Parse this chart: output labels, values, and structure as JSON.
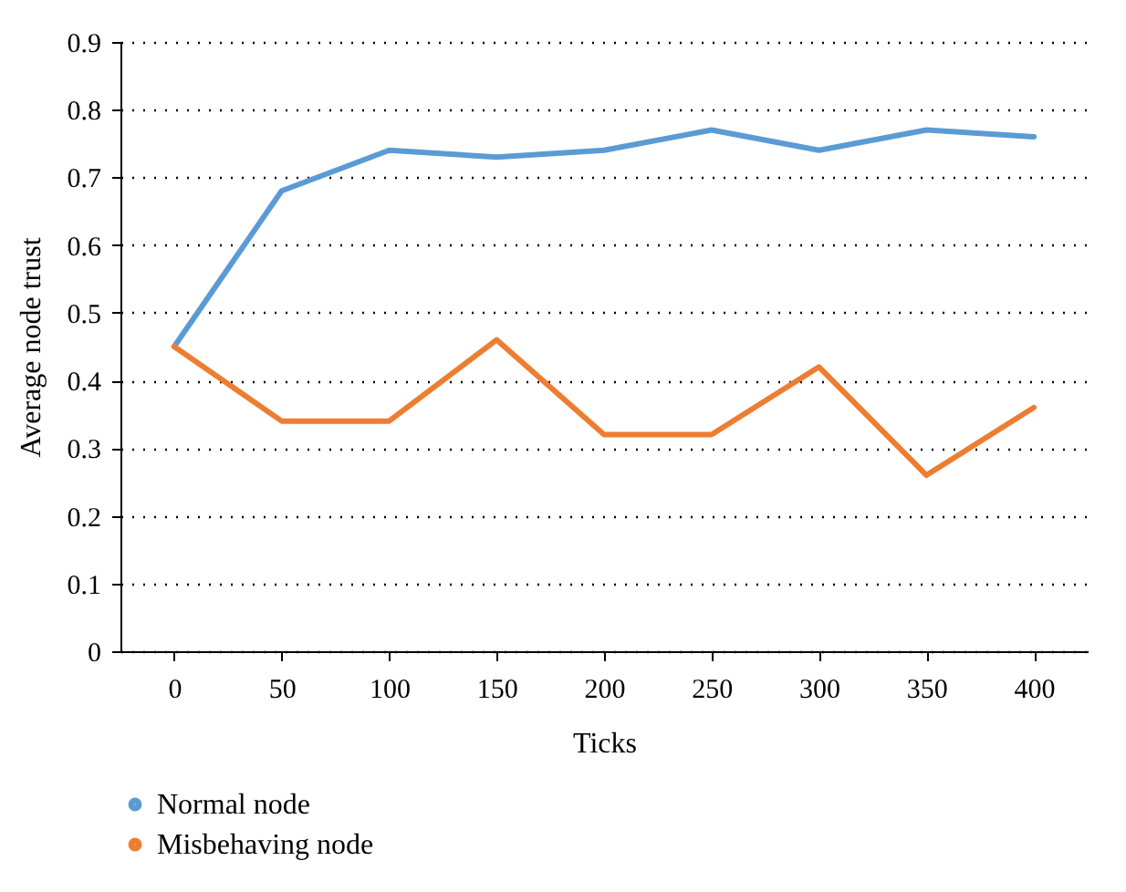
{
  "chart_data": {
    "type": "line",
    "xlabel": "Ticks",
    "ylabel": "Average node trust",
    "categories": [
      "0",
      "50",
      "100",
      "150",
      "200",
      "250",
      "300",
      "350",
      "400"
    ],
    "series": [
      {
        "name": "Normal node",
        "color": "#5b9bd5",
        "values": [
          0.45,
          0.68,
          0.74,
          0.73,
          0.74,
          0.77,
          0.74,
          0.77,
          0.76
        ]
      },
      {
        "name": "Misbehaving node",
        "color": "#ed7d31",
        "values": [
          0.45,
          0.34,
          0.34,
          0.46,
          0.32,
          0.32,
          0.42,
          0.26,
          0.36
        ]
      }
    ],
    "ylim": [
      0,
      0.9
    ],
    "yticks": [
      {
        "value": 0,
        "label": "0"
      },
      0.1,
      0.2,
      0.3,
      0.4,
      0.5,
      0.6,
      0.7,
      0.8,
      0.9
    ],
    "grid": "y",
    "legend": "bottom",
    "line_style": "solid",
    "marker": "none"
  }
}
